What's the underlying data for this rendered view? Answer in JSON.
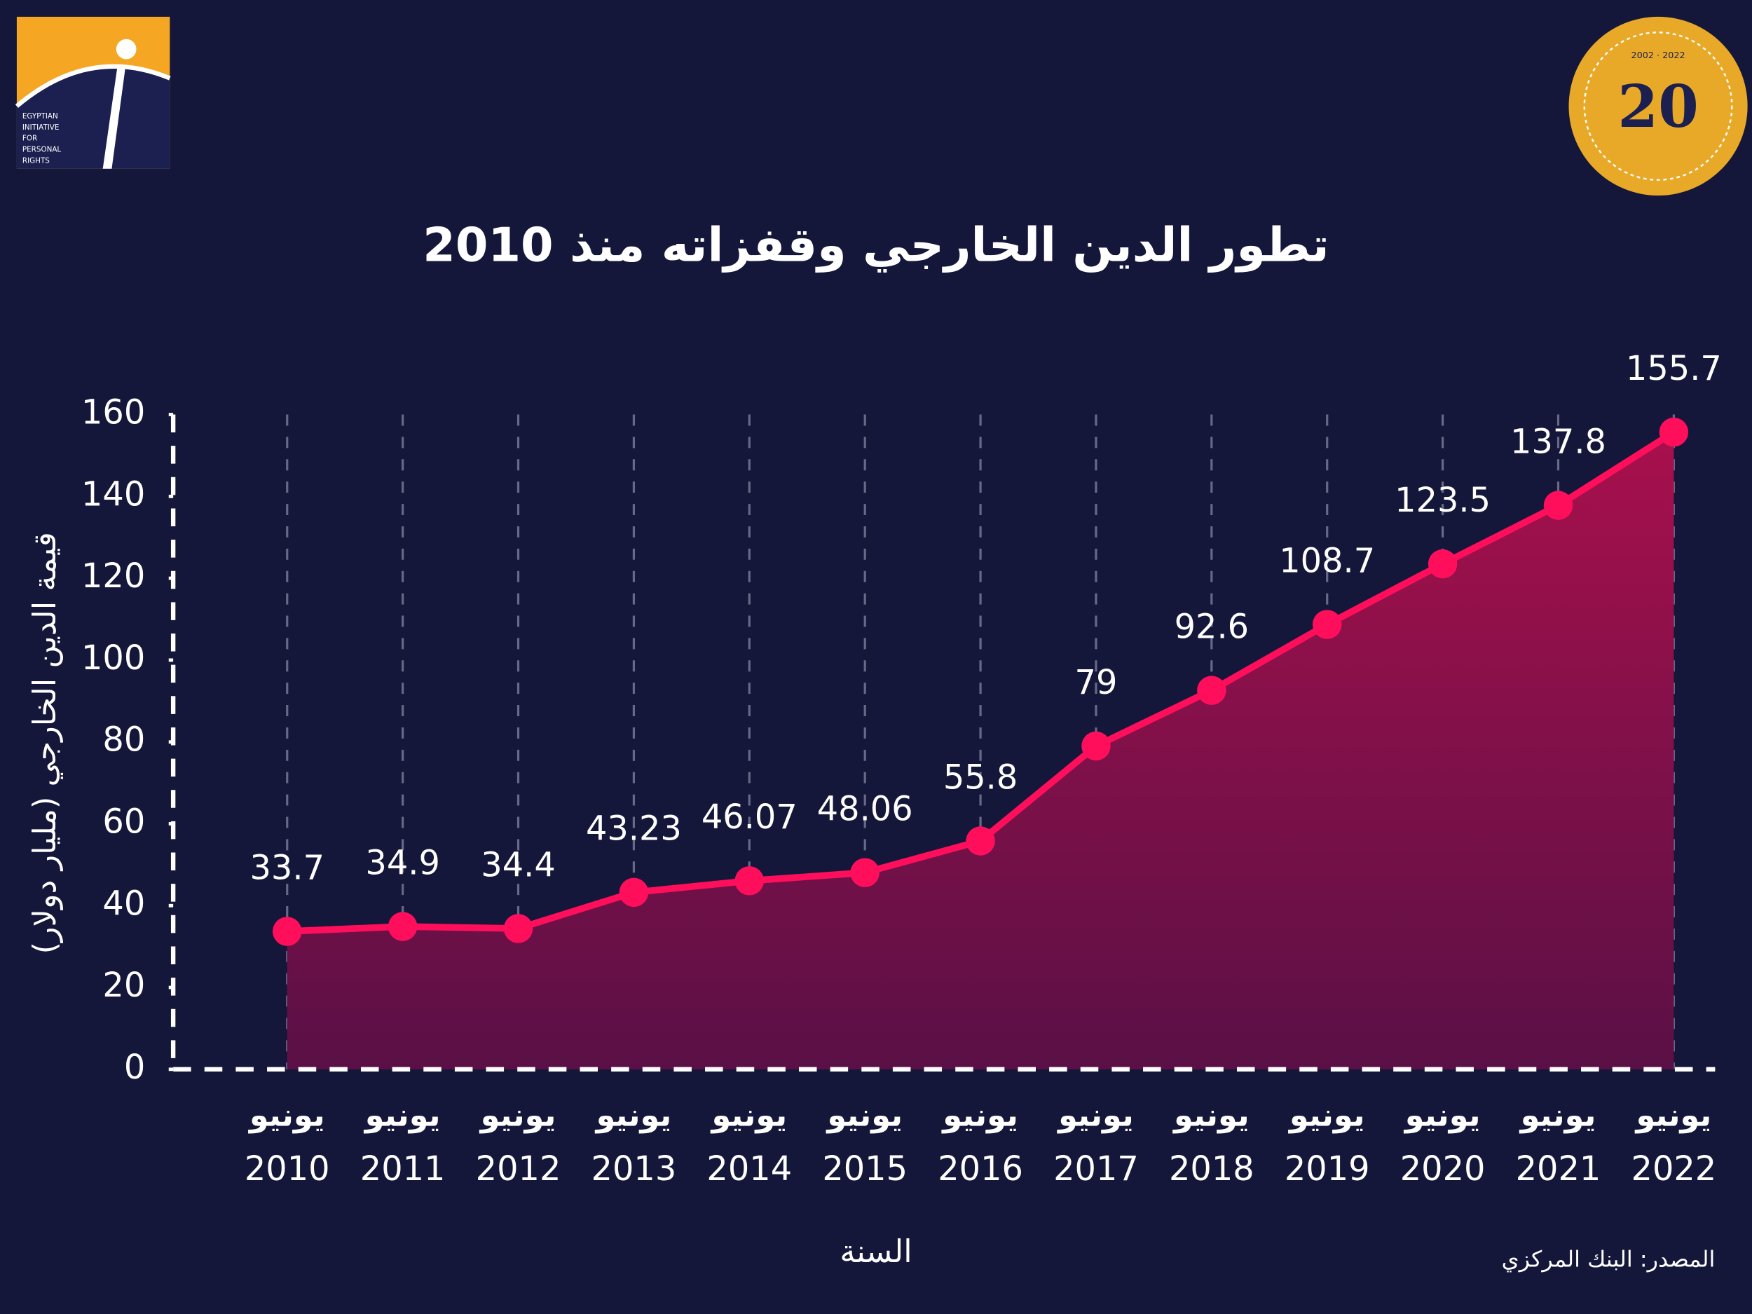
{
  "chart_data": {
    "type": "line",
    "title": "تطور الدين الخارجي وقفزاته منذ 2010",
    "y_label": "قيمة الدين الخارجي (مليار دولار)",
    "x_label": "السنة",
    "source": "المصدر: البنك المركزي",
    "categories": [
      [
        "يونيو",
        "2010"
      ],
      [
        "يونيو",
        "2011"
      ],
      [
        "يونيو",
        "2012"
      ],
      [
        "يونيو",
        "2013"
      ],
      [
        "يونيو",
        "2014"
      ],
      [
        "يونيو",
        "2015"
      ],
      [
        "يونيو",
        "2016"
      ],
      [
        "يونيو",
        "2017"
      ],
      [
        "يونيو",
        "2018"
      ],
      [
        "يونيو",
        "2019"
      ],
      [
        "يونيو",
        "2020"
      ],
      [
        "يونيو",
        "2021"
      ],
      [
        "يونيو",
        "2022"
      ]
    ],
    "series": [
      {
        "name": "الدين الخارجي",
        "color": "#ff0f5b",
        "values": [
          33.7,
          34.9,
          34.4,
          43.23,
          46.07,
          48.06,
          55.8,
          79,
          92.6,
          108.7,
          123.5,
          137.8,
          155.7
        ]
      }
    ],
    "ylim": [
      0,
      160
    ],
    "yticks": [
      0,
      20,
      40,
      60,
      80,
      100,
      120,
      140,
      160
    ],
    "grid": true
  },
  "logos": {
    "left": [
      "EGYPTIAN",
      "INITIATIVE",
      "FOR",
      "PERSONAL",
      "RIGHTS"
    ],
    "right_years": "2002 · 2022",
    "right_number": "20"
  }
}
